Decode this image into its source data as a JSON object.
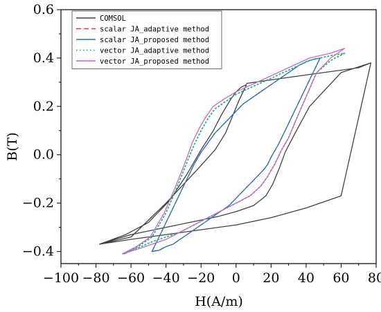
{
  "chart_data": {
    "type": "line",
    "title": "",
    "xlabel": "H(A/m)",
    "ylabel": "B(T)",
    "xlim": [
      -100,
      80
    ],
    "ylim": [
      -0.45,
      0.6
    ],
    "xticks": [
      -100,
      -80,
      -60,
      -40,
      -20,
      0,
      20,
      40,
      60,
      80
    ],
    "yticks": [
      -0.4,
      -0.2,
      0.0,
      0.2,
      0.4,
      0.6
    ],
    "xtick_labels": [
      "−100",
      "−80",
      "−60",
      "−40",
      "−20",
      "0",
      "20",
      "40",
      "60",
      "80"
    ],
    "ytick_labels": [
      "−0.4",
      "−0.2",
      "0.0",
      "0.2",
      "0.4",
      "0.6"
    ],
    "grid": false,
    "legend_position": "top-left",
    "series": [
      {
        "name": "COMSOL",
        "color": "#404040",
        "dash": "solid",
        "x": [
          6,
          25,
          50,
          70,
          77,
          60,
          42,
          33,
          28,
          25,
          21,
          17,
          10,
          0,
          -10,
          -20,
          -40,
          -60,
          -78,
          -60,
          -40,
          -22,
          -12,
          -6,
          -2,
          2,
          6,
          3,
          0,
          -3,
          -8,
          -13,
          -20,
          -28,
          -38,
          -50,
          -63,
          -78,
          -60,
          -40,
          -20,
          0,
          20,
          40,
          60,
          77
        ],
        "y": [
          0.295,
          0.315,
          0.34,
          0.36,
          0.38,
          0.34,
          0.2,
          0.08,
          0.01,
          -0.05,
          -0.12,
          -0.17,
          -0.21,
          -0.235,
          -0.255,
          -0.27,
          -0.3,
          -0.33,
          -0.37,
          -0.34,
          -0.2,
          -0.06,
          0.02,
          0.09,
          0.16,
          0.23,
          0.29,
          0.28,
          0.26,
          0.23,
          0.17,
          0.1,
          0.02,
          -0.08,
          -0.19,
          -0.28,
          -0.33,
          -0.37,
          -0.35,
          -0.33,
          -0.31,
          -0.29,
          -0.26,
          -0.22,
          -0.17,
          0.38
        ]
      },
      {
        "name": "scalar JA_adaptive method",
        "color": "#e03c31",
        "dash": "dashed",
        "x": [
          -48,
          -44,
          -40,
          -36,
          -32,
          -28,
          -24,
          -20,
          -16,
          -12,
          -8,
          -4,
          0,
          4,
          8,
          12,
          16,
          20,
          24,
          28,
          32,
          36,
          40,
          44,
          48,
          44,
          40,
          36,
          32,
          28,
          24,
          20,
          18,
          16,
          12,
          8,
          4,
          0,
          -4,
          -8,
          -12,
          -16,
          -20,
          -24,
          -28,
          -32,
          -36,
          -40,
          -44,
          -48
        ],
        "y": [
          -0.4,
          -0.34,
          -0.28,
          -0.22,
          -0.16,
          -0.1,
          -0.04,
          0.01,
          0.05,
          0.09,
          0.12,
          0.15,
          0.18,
          0.21,
          0.23,
          0.25,
          0.27,
          0.29,
          0.31,
          0.33,
          0.35,
          0.37,
          0.385,
          0.395,
          0.4,
          0.34,
          0.28,
          0.22,
          0.16,
          0.1,
          0.04,
          -0.01,
          -0.04,
          -0.06,
          -0.09,
          -0.12,
          -0.15,
          -0.18,
          -0.21,
          -0.23,
          -0.25,
          -0.27,
          -0.29,
          -0.31,
          -0.33,
          -0.35,
          -0.37,
          -0.38,
          -0.395,
          -0.4
        ]
      },
      {
        "name": "scalar JA_proposed method",
        "color": "#1f6fc8",
        "dash": "solid",
        "x": [
          -48,
          -44,
          -40,
          -36,
          -32,
          -28,
          -24,
          -20,
          -16,
          -12,
          -8,
          -4,
          0,
          4,
          8,
          12,
          16,
          20,
          24,
          28,
          32,
          36,
          40,
          44,
          48,
          44,
          40,
          36,
          32,
          28,
          24,
          20,
          18,
          16,
          12,
          8,
          4,
          0,
          -4,
          -8,
          -12,
          -16,
          -20,
          -24,
          -28,
          -32,
          -36,
          -40,
          -44,
          -48
        ],
        "y": [
          -0.4,
          -0.34,
          -0.28,
          -0.22,
          -0.16,
          -0.1,
          -0.04,
          0.01,
          0.05,
          0.09,
          0.12,
          0.15,
          0.18,
          0.21,
          0.23,
          0.25,
          0.27,
          0.29,
          0.31,
          0.33,
          0.35,
          0.37,
          0.385,
          0.395,
          0.4,
          0.34,
          0.28,
          0.22,
          0.16,
          0.1,
          0.04,
          -0.01,
          -0.04,
          -0.06,
          -0.09,
          -0.12,
          -0.15,
          -0.18,
          -0.21,
          -0.23,
          -0.25,
          -0.27,
          -0.29,
          -0.31,
          -0.33,
          -0.35,
          -0.37,
          -0.38,
          -0.395,
          -0.4
        ]
      },
      {
        "name": "vector JA_adaptive method",
        "color": "#22b573",
        "dash": "dotted",
        "x": [
          -64,
          -56,
          -48,
          -40,
          -34,
          -28,
          -24,
          -20,
          -16,
          -12,
          -6,
          0,
          6,
          12,
          18,
          24,
          30,
          36,
          42,
          48,
          54,
          58,
          62,
          54,
          46,
          40,
          34,
          30,
          26,
          22,
          18,
          14,
          8,
          0,
          -8,
          -16,
          -24,
          -32,
          -40,
          -48,
          -56,
          -64
        ],
        "y": [
          -0.41,
          -0.38,
          -0.34,
          -0.24,
          -0.14,
          -0.03,
          0.04,
          0.1,
          0.15,
          0.19,
          0.22,
          0.25,
          0.27,
          0.29,
          0.31,
          0.33,
          0.35,
          0.37,
          0.39,
          0.4,
          0.41,
          0.415,
          0.42,
          0.39,
          0.34,
          0.24,
          0.14,
          0.07,
          0.02,
          -0.04,
          -0.09,
          -0.13,
          -0.17,
          -0.2,
          -0.23,
          -0.26,
          -0.29,
          -0.32,
          -0.34,
          -0.36,
          -0.385,
          -0.41
        ]
      },
      {
        "name": "vector JA_proposed method",
        "color": "#c565d8",
        "dash": "solid",
        "x": [
          -65,
          -57,
          -49,
          -41,
          -35,
          -29,
          -25,
          -21,
          -17,
          -13,
          -7,
          0,
          6,
          12,
          18,
          24,
          30,
          36,
          42,
          48,
          54,
          58,
          62,
          54,
          46,
          40,
          34,
          30,
          26,
          22,
          18,
          14,
          8,
          0,
          -8,
          -16,
          -24,
          -32,
          -40,
          -48,
          -56,
          -65
        ],
        "y": [
          -0.41,
          -0.38,
          -0.34,
          -0.24,
          -0.14,
          -0.03,
          0.05,
          0.11,
          0.16,
          0.2,
          0.23,
          0.26,
          0.28,
          0.3,
          0.32,
          0.34,
          0.36,
          0.38,
          0.4,
          0.41,
          0.42,
          0.43,
          0.44,
          0.4,
          0.34,
          0.24,
          0.14,
          0.07,
          0.02,
          -0.04,
          -0.09,
          -0.13,
          -0.17,
          -0.2,
          -0.23,
          -0.26,
          -0.29,
          -0.32,
          -0.35,
          -0.37,
          -0.39,
          -0.41
        ]
      }
    ]
  }
}
